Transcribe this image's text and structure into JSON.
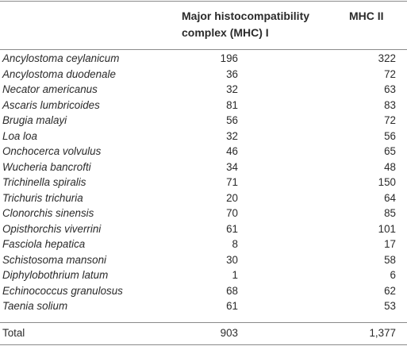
{
  "table": {
    "headers": {
      "mhc1_line1": "Major histocompatibility",
      "mhc1_line2": "complex (MHC) I",
      "mhc2": "MHC II"
    },
    "rows": [
      {
        "species": "Ancylostoma ceylanicum",
        "mhc1": "196",
        "mhc2": "322"
      },
      {
        "species": "Ancylostoma duodenale",
        "mhc1": "36",
        "mhc2": "72"
      },
      {
        "species": "Necator americanus",
        "mhc1": "32",
        "mhc2": "63"
      },
      {
        "species": "Ascaris lumbricoides",
        "mhc1": "81",
        "mhc2": "83"
      },
      {
        "species": "Brugia malayi",
        "mhc1": "56",
        "mhc2": "72"
      },
      {
        "species": "Loa loa",
        "mhc1": "32",
        "mhc2": "56"
      },
      {
        "species": "Onchocerca volvulus",
        "mhc1": "46",
        "mhc2": "65"
      },
      {
        "species": "Wucheria bancrofti",
        "mhc1": "34",
        "mhc2": "48"
      },
      {
        "species": "Trichinella spiralis",
        "mhc1": "71",
        "mhc2": "150"
      },
      {
        "species": "Trichuris trichuria",
        "mhc1": "20",
        "mhc2": "64"
      },
      {
        "species": "Clonorchis sinensis",
        "mhc1": "70",
        "mhc2": "85"
      },
      {
        "species": "Opisthorchis viverrini",
        "mhc1": "61",
        "mhc2": "101"
      },
      {
        "species": "Fasciola hepatica",
        "mhc1": "8",
        "mhc2": "17"
      },
      {
        "species": "Schistosoma mansoni",
        "mhc1": "30",
        "mhc2": "58"
      },
      {
        "species": "Diphylobothrium latum",
        "mhc1": "1",
        "mhc2": "6"
      },
      {
        "species": "Echinococcus granulosus",
        "mhc1": "68",
        "mhc2": "62"
      },
      {
        "species": "Taenia solium",
        "mhc1": "61",
        "mhc2": "53"
      }
    ],
    "total": {
      "label": "Total",
      "mhc1": "903",
      "mhc2": "1,377"
    }
  }
}
